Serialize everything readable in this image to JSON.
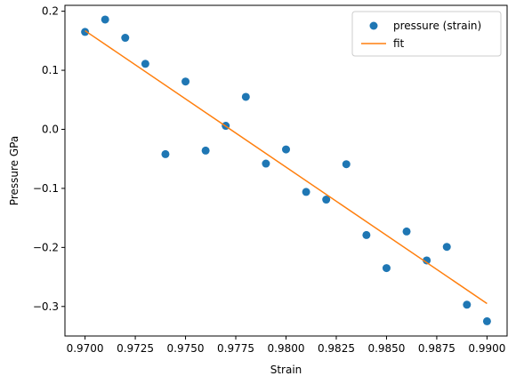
{
  "chart_data": {
    "type": "scatter",
    "xlabel": "Strain",
    "ylabel": "Pressure GPa",
    "xlim": [
      0.969,
      0.991
    ],
    "ylim": [
      -0.35,
      0.21
    ],
    "xticks": [
      "0.9700",
      "0.9725",
      "0.9750",
      "0.9775",
      "0.9800",
      "0.9825",
      "0.9850",
      "0.9875",
      "0.9900"
    ],
    "yticks": [
      "0.2",
      "0.1",
      "0.0",
      "−0.1",
      "−0.2",
      "−0.3"
    ],
    "legend_position": "top-right",
    "series": [
      {
        "name": "pressure (strain)",
        "kind": "scatter",
        "color": "#1f77b4",
        "x": [
          0.97,
          0.971,
          0.972,
          0.973,
          0.974,
          0.975,
          0.976,
          0.977,
          0.978,
          0.979,
          0.98,
          0.981,
          0.982,
          0.983,
          0.984,
          0.985,
          0.986,
          0.987,
          0.988,
          0.989,
          0.99
        ],
        "y": [
          0.165,
          0.186,
          0.155,
          0.111,
          -0.042,
          0.081,
          -0.036,
          0.006,
          0.055,
          -0.058,
          -0.034,
          -0.106,
          -0.119,
          -0.059,
          -0.179,
          -0.235,
          -0.173,
          -0.222,
          -0.199,
          -0.297,
          -0.325
        ]
      },
      {
        "name": "fit",
        "kind": "line",
        "color": "#ff7f0e",
        "x": [
          0.97,
          0.99
        ],
        "y": [
          0.167,
          -0.295
        ]
      }
    ]
  }
}
